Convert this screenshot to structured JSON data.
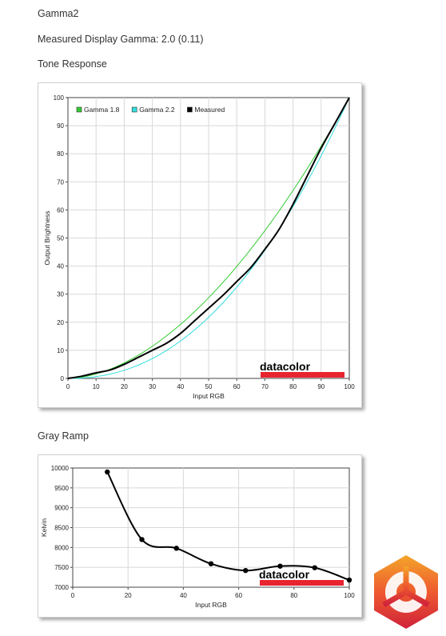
{
  "headings": {
    "title": "Gamma2",
    "measured_gamma": "Measured Display Gamma: 2.0 (0.11)",
    "tone_response": "Tone Response",
    "gray_ramp": "Gray Ramp"
  },
  "watermark": {
    "text": "datacolor",
    "bar_color": "#e8242f"
  },
  "logo": {
    "name": "kitguru-logo"
  },
  "chart_data": [
    {
      "type": "line",
      "title": "Tone Response",
      "xlabel": "Input RGB",
      "ylabel": "Output Brightness",
      "xlim": [
        0,
        100
      ],
      "ylim": [
        0,
        100
      ],
      "xticks": [
        "0",
        "10",
        "20",
        "30",
        "40",
        "50",
        "60",
        "70",
        "80",
        "90",
        "100"
      ],
      "yticks": [
        "0",
        "10",
        "20",
        "30",
        "40",
        "50",
        "60",
        "70",
        "80",
        "90",
        "100"
      ],
      "grid": true,
      "legend_position": "top-left",
      "series": [
        {
          "name": "Gamma 1.8",
          "color": "#33cc33",
          "gamma": 1.8,
          "x": [
            0,
            10,
            20,
            30,
            40,
            50,
            60,
            70,
            80,
            90,
            100
          ],
          "values": [
            0,
            1.6,
            5.5,
            11.5,
            19.2,
            28.7,
            39.9,
            52.6,
            66.9,
            82.7,
            100
          ]
        },
        {
          "name": "Gamma 2.2",
          "color": "#33dddd",
          "gamma": 2.2,
          "x": [
            0,
            10,
            20,
            30,
            40,
            50,
            60,
            70,
            80,
            90,
            100
          ],
          "values": [
            0,
            0.6,
            2.9,
            7.1,
            13.3,
            21.8,
            32.5,
            45.6,
            61.2,
            79.3,
            100
          ]
        },
        {
          "name": "Measured",
          "color": "#000000",
          "x": [
            0,
            5,
            10,
            15,
            20,
            25,
            30,
            35,
            40,
            45,
            50,
            55,
            60,
            65,
            70,
            75,
            80,
            85,
            90,
            95,
            100
          ],
          "values": [
            0,
            0.8,
            2.0,
            3.0,
            5.0,
            7.5,
            10.0,
            12.5,
            16.0,
            20.5,
            25.0,
            29.5,
            34.5,
            39.5,
            46.0,
            53.0,
            62.0,
            72.0,
            82.0,
            91.0,
            100
          ]
        }
      ]
    },
    {
      "type": "line",
      "title": "Gray Ramp",
      "xlabel": "Input RGB",
      "ylabel": "Kelvin",
      "xlim": [
        0,
        100
      ],
      "ylim": [
        7000,
        10000
      ],
      "xticks": [
        "0",
        "20",
        "40",
        "60",
        "80",
        "100"
      ],
      "yticks": [
        "7000",
        "7500",
        "8000",
        "8500",
        "9000",
        "9500",
        "10000"
      ],
      "grid": true,
      "series": [
        {
          "name": "",
          "color": "#000000",
          "markers": true,
          "x": [
            12.5,
            25,
            37.5,
            50,
            62.5,
            75,
            87.5,
            100
          ],
          "values": [
            9900,
            8200,
            7980,
            7590,
            7420,
            7530,
            7490,
            7180
          ]
        }
      ]
    }
  ]
}
